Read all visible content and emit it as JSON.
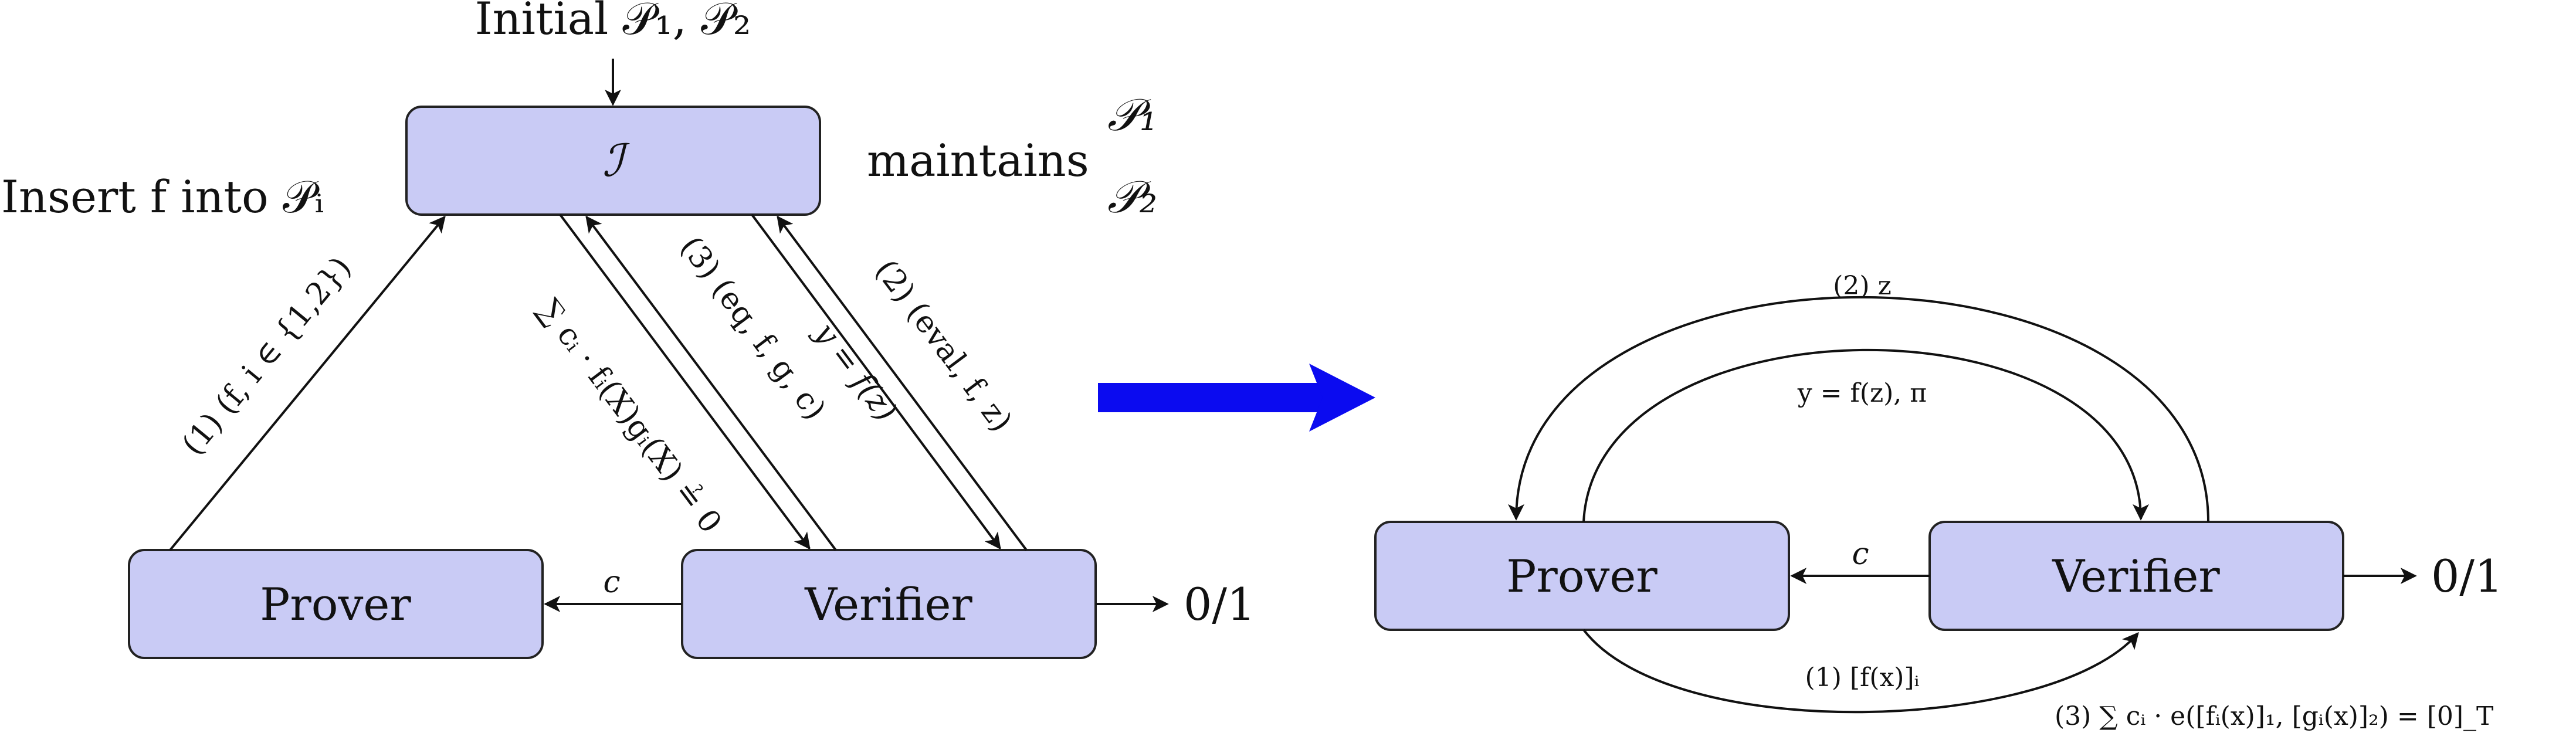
{
  "colors": {
    "box_fill": "#c9cbf5",
    "box_stroke": "#222222",
    "big_arrow": "#0b0bf0",
    "line": "#111111"
  },
  "left": {
    "top_input": "Initial 𝒫₁, 𝒫₂",
    "interface_node": "ℐ",
    "maintains_label": "maintains",
    "p1_label": "𝒫₁",
    "p2_label": "𝒫₂",
    "insert_label": "Insert f into 𝒫ᵢ",
    "prover_node": "Prover",
    "verifier_node": "Verifier",
    "output_label": "0/1",
    "c_label": "c",
    "edge1_label": "(1) (f, i ∈ {1,2})",
    "edge_sum_label": "∑ cᵢ · fᵢ(X)gᵢ(X) ≟ 0",
    "edge3_label": "(3) (eq, f, g, c)",
    "edge_y_label": "y = f(z)",
    "edge2_label": "(2) (eval, f, z)"
  },
  "right": {
    "prover_node": "Prover",
    "verifier_node": "Verifier",
    "output_label": "0/1",
    "c_label": "c",
    "top_label": "(2) z",
    "inner_label": "y = f(z), π",
    "bottom_label": "(1) [f(x)]ᵢ",
    "check_label": "(3) ∑ cᵢ · e([fᵢ(x)]₁, [gᵢ(x)]₂) = [0]_T"
  }
}
